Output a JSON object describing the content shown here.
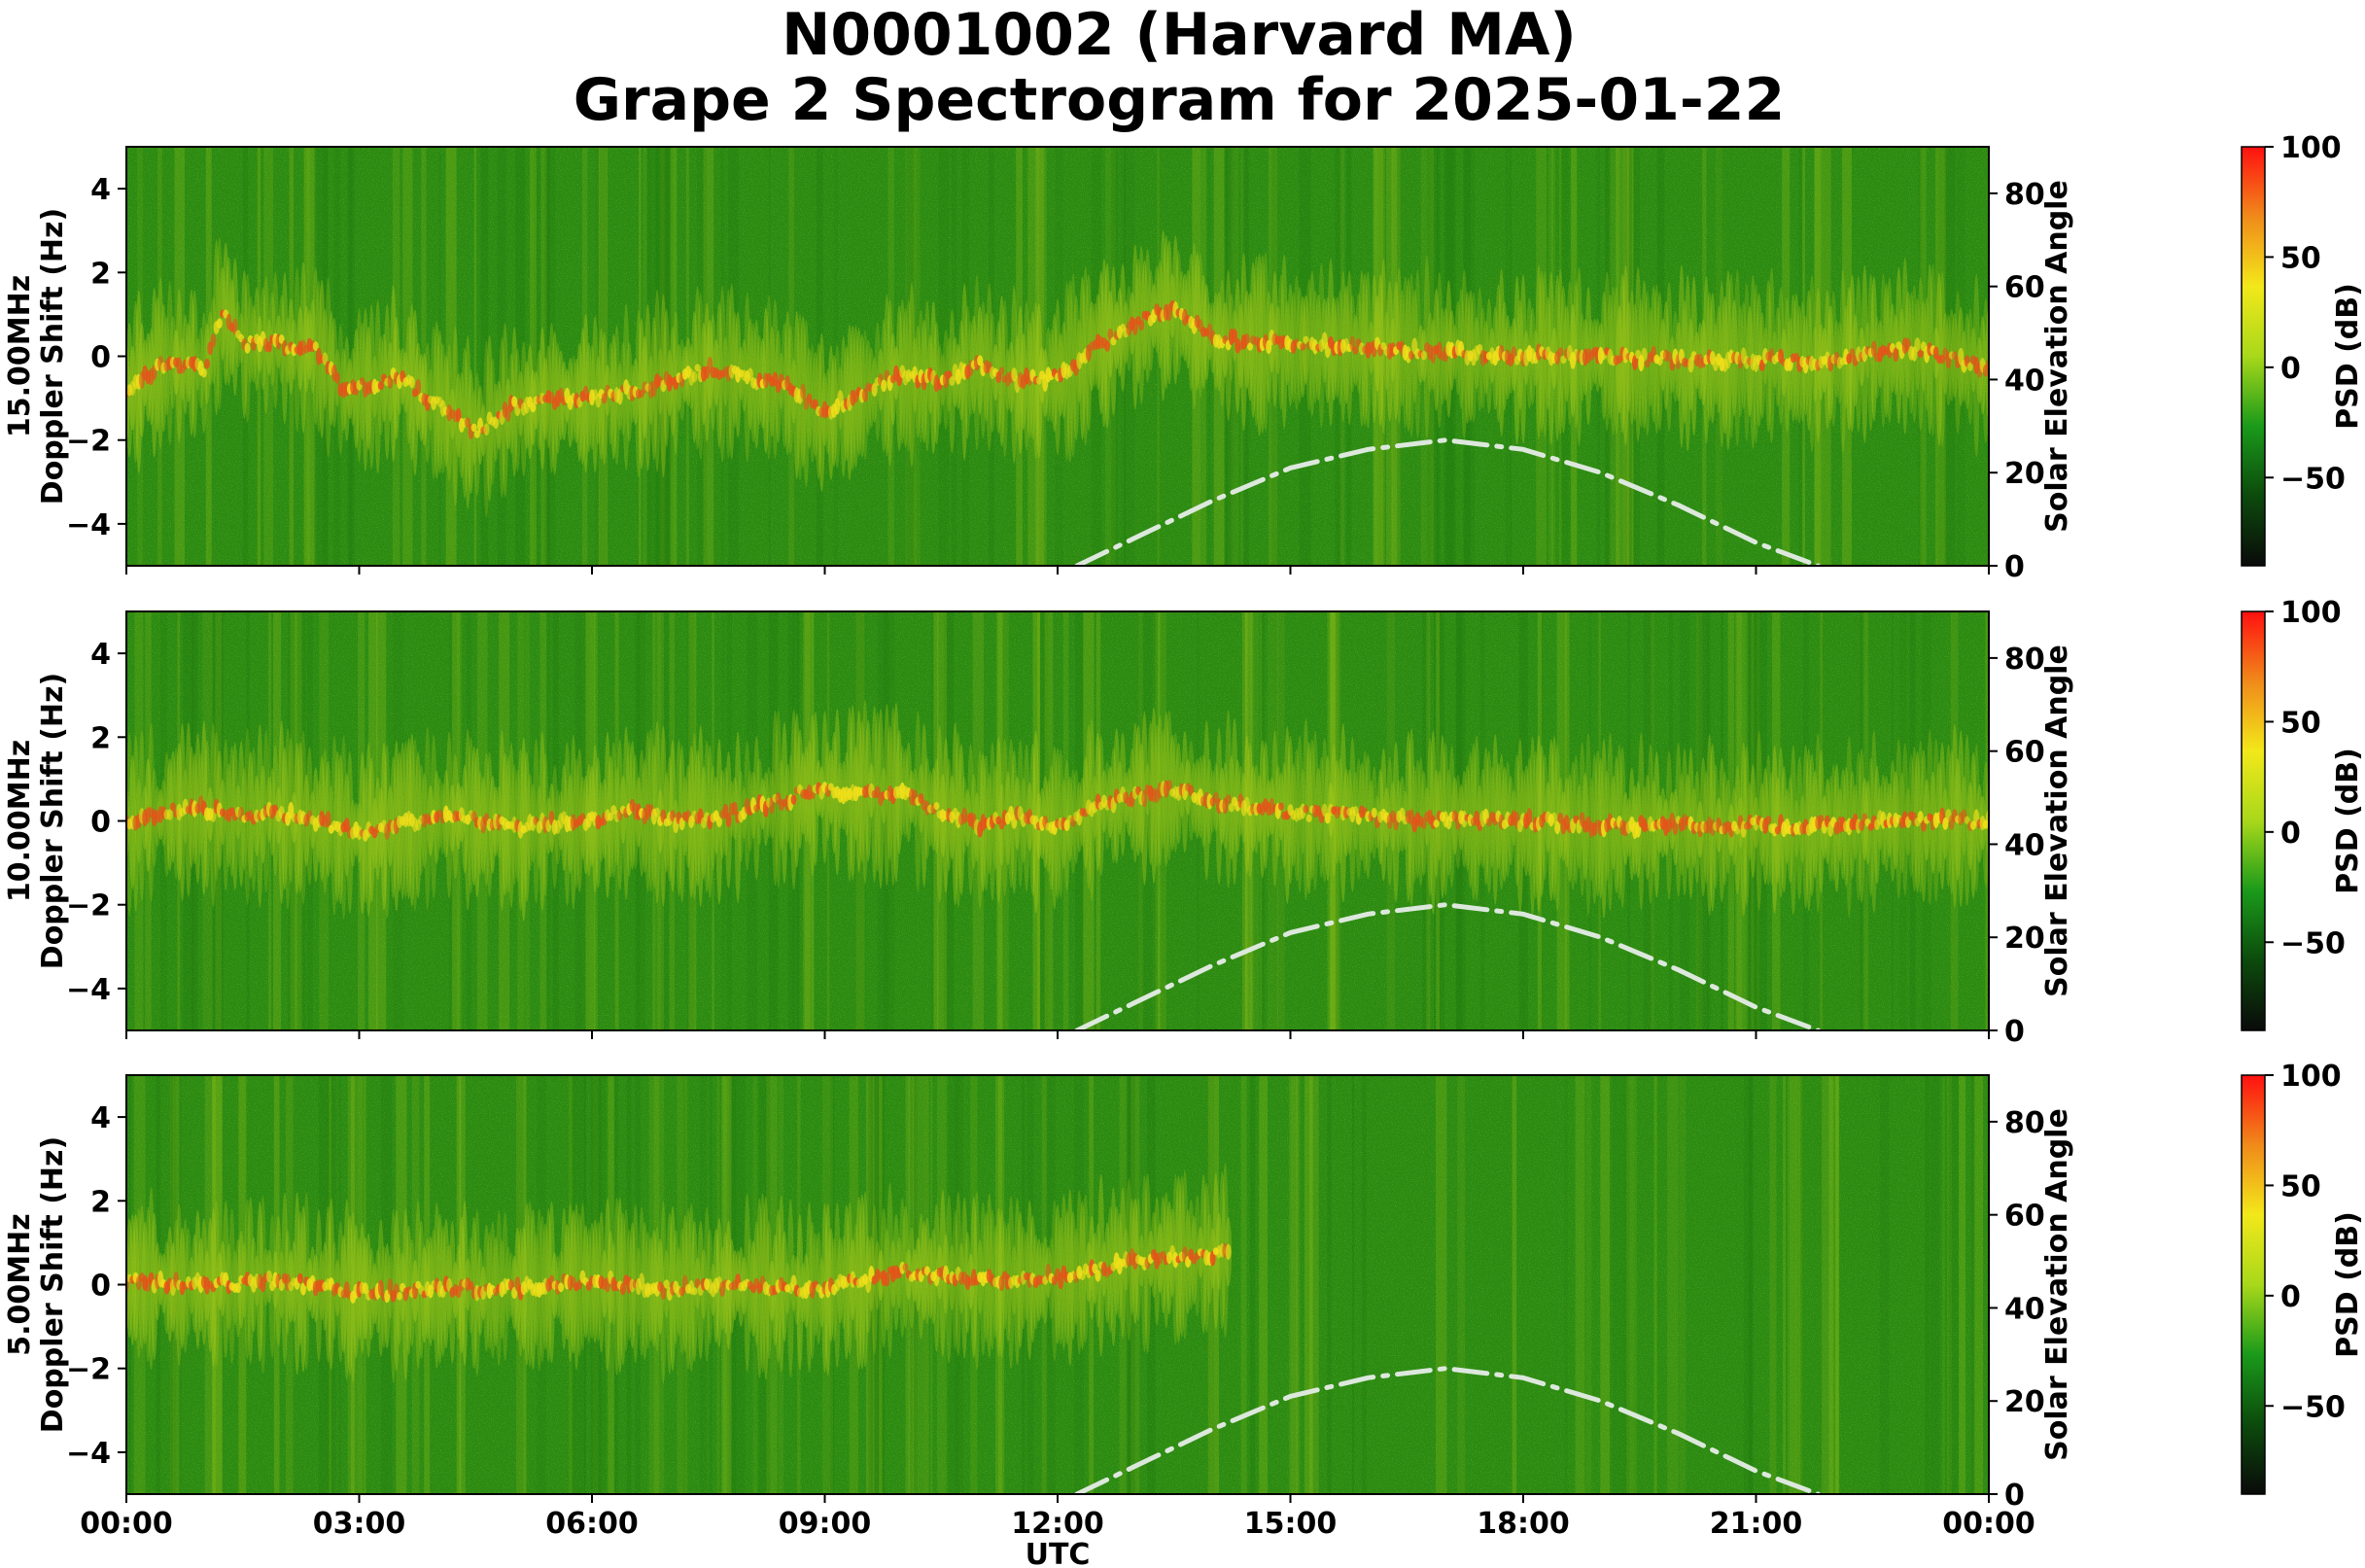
{
  "title": {
    "line1": "N0001002 (Harvard MA)",
    "line2": "Grape 2 Spectrogram for 2025-01-22"
  },
  "colors": {
    "spectrogram_base": "#2a8a12",
    "signal_mid": "#b8d41c",
    "signal_high": "#f2e01a",
    "signal_peak": "#e8501a",
    "solar_curve": "#dde8dd",
    "colorbar_stops": [
      "#0a0a0a",
      "#0c4a0c",
      "#1a9a1a",
      "#a8d81a",
      "#f2e81a",
      "#f08a1a",
      "#ff1010"
    ]
  },
  "chart_data": [
    {
      "type": "heatmap",
      "frequency_label": "15.00MHz",
      "ylabel_lines": [
        "15.00MHz",
        "Doppler Shift (Hz)"
      ],
      "y2label": "Solar Elevation Angle",
      "ylim": [
        -5,
        5
      ],
      "y_ticks": [
        -4,
        -2,
        0,
        2,
        4
      ],
      "y2lim": [
        0,
        90
      ],
      "y2_ticks": [
        0,
        20,
        40,
        60,
        80
      ],
      "xlim_hours": [
        0,
        24
      ],
      "colorbar": {
        "label": "PSD (dB)",
        "range": [
          -90,
          100
        ],
        "ticks": [
          -50,
          0,
          50,
          100
        ]
      },
      "carrier_trace": {
        "x_hours": [
          0,
          0.5,
          1.0,
          1.25,
          1.5,
          2.0,
          2.5,
          2.8,
          3.5,
          4.5,
          5.0,
          5.6,
          6.0,
          6.6,
          7.5,
          8.5,
          9.0,
          10.0,
          10.5,
          11.0,
          11.5,
          12.0,
          12.5,
          13.0,
          13.5,
          14.0,
          15.0,
          16.0,
          17.0,
          18.0,
          19.0,
          20.0,
          21.0,
          22.0,
          23.0,
          24.0
        ],
        "doppler_hz": [
          -0.8,
          -0.2,
          -0.3,
          1.2,
          0.3,
          0.3,
          0.1,
          -0.8,
          -0.5,
          -1.8,
          -1.2,
          -1.0,
          -1.0,
          -0.8,
          -0.3,
          -0.7,
          -1.3,
          -0.4,
          -0.6,
          -0.2,
          -0.6,
          -0.5,
          0.2,
          0.8,
          1.2,
          0.4,
          0.3,
          0.2,
          0.1,
          0.0,
          0.0,
          -0.1,
          -0.1,
          -0.1,
          0.2,
          -0.3
        ],
        "visible_from_hours": 0,
        "visible_to_hours": 24
      }
    },
    {
      "type": "heatmap",
      "frequency_label": "10.00MHz",
      "ylabel_lines": [
        "10.00MHz",
        "Doppler Shift (Hz)"
      ],
      "y2label": "Solar Elevation Angle",
      "ylim": [
        -5,
        5
      ],
      "y_ticks": [
        -4,
        -2,
        0,
        2,
        4
      ],
      "y2lim": [
        0,
        90
      ],
      "y2_ticks": [
        0,
        20,
        40,
        60,
        80
      ],
      "xlim_hours": [
        0,
        24
      ],
      "colorbar": {
        "label": "PSD (dB)",
        "range": [
          -90,
          100
        ],
        "ticks": [
          -50,
          0,
          50,
          100
        ]
      },
      "carrier_trace": {
        "x_hours": [
          0,
          0.5,
          1.0,
          1.5,
          2.0,
          2.5,
          3.0,
          3.5,
          4.0,
          5.0,
          6.0,
          6.5,
          7.0,
          7.5,
          9.0,
          9.5,
          10.0,
          10.5,
          11.0,
          11.5,
          12.0,
          12.5,
          13.0,
          13.5,
          14.0,
          15.0,
          16.0,
          17.0,
          18.0,
          19.0,
          20.0,
          21.0,
          22.0,
          23.0,
          24.0
        ],
        "doppler_hz": [
          0.0,
          0.2,
          0.3,
          0.1,
          0.2,
          0.0,
          -0.3,
          -0.1,
          0.1,
          -0.1,
          0.0,
          0.3,
          0.0,
          0.0,
          0.8,
          0.6,
          0.7,
          0.2,
          -0.1,
          0.1,
          -0.1,
          0.4,
          0.6,
          0.8,
          0.5,
          0.2,
          0.1,
          0.0,
          0.0,
          -0.1,
          -0.1,
          -0.1,
          -0.1,
          0.0,
          0.0
        ],
        "visible_from_hours": 0,
        "visible_to_hours": 24
      }
    },
    {
      "type": "heatmap",
      "frequency_label": "5.00MHz",
      "ylabel_lines": [
        "5.00MHz",
        "Doppler Shift (Hz)"
      ],
      "y2label": "Solar Elevation Angle",
      "ylim": [
        -5,
        5
      ],
      "y_ticks": [
        -4,
        -2,
        0,
        2,
        4
      ],
      "y2lim": [
        0,
        90
      ],
      "y2_ticks": [
        0,
        20,
        40,
        60,
        80
      ],
      "xlim_hours": [
        0,
        24
      ],
      "xlabel": "UTC",
      "x_tick_labels": [
        "00:00",
        "03:00",
        "06:00",
        "09:00",
        "12:00",
        "15:00",
        "18:00",
        "21:00",
        "00:00"
      ],
      "x_tick_hours": [
        0,
        3,
        6,
        9,
        12,
        15,
        18,
        21,
        24
      ],
      "colorbar": {
        "label": "PSD (dB)",
        "range": [
          -90,
          100
        ],
        "ticks": [
          -50,
          0,
          50,
          100
        ]
      },
      "carrier_trace": {
        "x_hours": [
          0,
          1.0,
          2.0,
          3.0,
          4.0,
          5.0,
          6.0,
          7.0,
          8.0,
          9.0,
          10.0,
          11.0,
          12.0,
          12.5,
          13.0,
          14.0
        ],
        "doppler_hz": [
          0.1,
          0.0,
          0.1,
          -0.2,
          -0.1,
          -0.1,
          0.1,
          -0.1,
          0.0,
          -0.1,
          0.3,
          0.1,
          0.2,
          0.3,
          0.6,
          0.7
        ],
        "visible_from_hours": 0,
        "visible_to_hours": 14.2
      }
    }
  ],
  "solar_elevation_curve": {
    "x_hours": [
      12.25,
      13.0,
      14.0,
      15.0,
      16.0,
      17.0,
      18.0,
      19.0,
      20.0,
      21.0,
      21.8
    ],
    "elevation_deg": [
      0,
      6,
      14,
      21,
      25,
      27,
      25,
      20,
      13,
      5,
      0
    ]
  }
}
